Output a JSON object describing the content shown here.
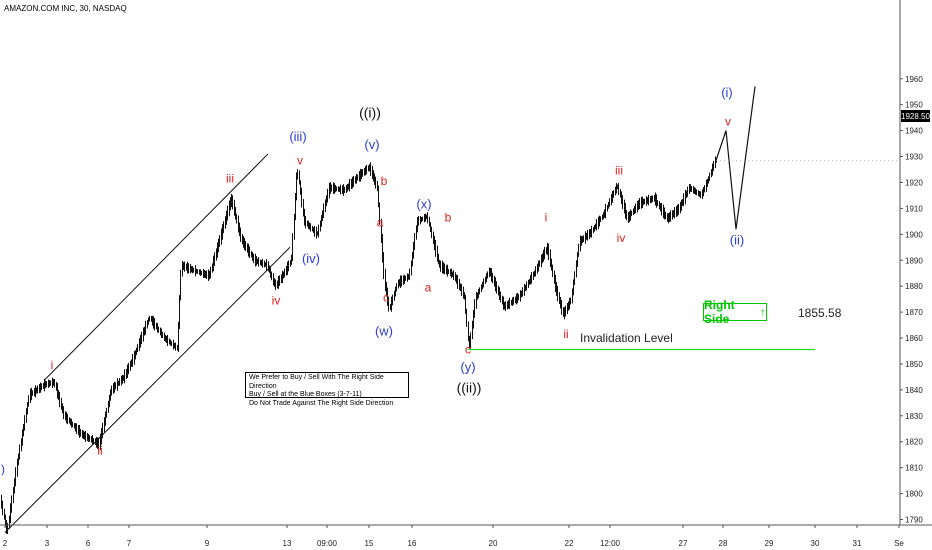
{
  "header": {
    "title": "AMAZON.COM INC, 30, NASDAQ"
  },
  "note": {
    "lines": [
      "We Prefer to Buy / Sell With The Right Side Direction",
      "Buy / Sell at the Blue Boxes (3-7-11)",
      "Do Not Trade Against The Right Side Direction"
    ]
  },
  "right_side_label": "Right Side",
  "right_side_arrow": "↑",
  "invalidation_label": "Invalidation Level",
  "invalidation_value": "1855.58",
  "last_price": "1928.50",
  "chart_data": {
    "type": "bar",
    "ylim": [
      1785,
      1965
    ],
    "y_ticks": [
      1790,
      1800,
      1810,
      1820,
      1830,
      1840,
      1850,
      1860,
      1870,
      1880,
      1890,
      1900,
      1910,
      1920,
      1930,
      1940,
      1950,
      1960
    ],
    "x_ticks": [
      "2",
      "3",
      "6",
      "7",
      "9",
      "13",
      "09:00",
      "15",
      "16",
      "20",
      "22",
      "12:00",
      "27",
      "28",
      "29",
      "30",
      "31",
      "Se"
    ],
    "invalidation_level": 1855.58,
    "last_price": 1928.5,
    "colors": {
      "blue": "#2b3cd6",
      "red": "#e0201e",
      "black": "#111111",
      "green": "#22dd22"
    },
    "waypoints": [
      [
        0,
        1800
      ],
      [
        8,
        1785
      ],
      [
        18,
        1812
      ],
      [
        30,
        1838
      ],
      [
        45,
        1842
      ],
      [
        55,
        1843
      ],
      [
        65,
        1830
      ],
      [
        82,
        1823
      ],
      [
        100,
        1819
      ],
      [
        112,
        1840
      ],
      [
        125,
        1845
      ],
      [
        135,
        1853
      ],
      [
        150,
        1868
      ],
      [
        165,
        1860
      ],
      [
        178,
        1856
      ],
      [
        182,
        1888
      ],
      [
        195,
        1886
      ],
      [
        210,
        1884
      ],
      [
        222,
        1900
      ],
      [
        232,
        1914
      ],
      [
        242,
        1898
      ],
      [
        255,
        1890
      ],
      [
        268,
        1888
      ],
      [
        276,
        1880
      ],
      [
        285,
        1885
      ],
      [
        292,
        1890
      ],
      [
        298,
        1926
      ],
      [
        305,
        1905
      ],
      [
        318,
        1900
      ],
      [
        330,
        1918
      ],
      [
        345,
        1917
      ],
      [
        358,
        1922
      ],
      [
        370,
        1926
      ],
      [
        378,
        1918
      ],
      [
        385,
        1882
      ],
      [
        390,
        1871
      ],
      [
        398,
        1881
      ],
      [
        410,
        1884
      ],
      [
        418,
        1905
      ],
      [
        428,
        1907
      ],
      [
        440,
        1888
      ],
      [
        455,
        1884
      ],
      [
        465,
        1876
      ],
      [
        470,
        1856
      ],
      [
        476,
        1875
      ],
      [
        490,
        1886
      ],
      [
        505,
        1872
      ],
      [
        520,
        1876
      ],
      [
        535,
        1885
      ],
      [
        548,
        1895
      ],
      [
        556,
        1880
      ],
      [
        564,
        1869
      ],
      [
        572,
        1875
      ],
      [
        580,
        1897
      ],
      [
        592,
        1901
      ],
      [
        605,
        1908
      ],
      [
        618,
        1919
      ],
      [
        628,
        1906
      ],
      [
        640,
        1912
      ],
      [
        655,
        1914
      ],
      [
        668,
        1906
      ],
      [
        680,
        1910
      ],
      [
        690,
        1918
      ],
      [
        702,
        1915
      ],
      [
        710,
        1922
      ],
      [
        716,
        1928.5
      ]
    ],
    "projection": [
      [
        716,
        1928.5
      ],
      [
        726,
        1940
      ],
      [
        736,
        1902
      ],
      [
        755,
        1957
      ]
    ],
    "channel": [
      {
        "from": [
          5,
          1785
        ],
        "to": [
          290,
          1895
        ]
      },
      {
        "from": [
          45,
          1844
        ],
        "to": [
          268,
          1931
        ]
      }
    ],
    "wave_labels": [
      {
        "text": ")",
        "at": [
          3,
          1808
        ],
        "color": "blue"
      },
      {
        "text": "i",
        "at": [
          52,
          1848
        ],
        "color": "red"
      },
      {
        "text": "ii",
        "at": [
          100,
          1815
        ],
        "color": "red"
      },
      {
        "text": "iii",
        "at": [
          230,
          1920
        ],
        "color": "red"
      },
      {
        "text": "iv",
        "at": [
          276,
          1873
        ],
        "color": "red"
      },
      {
        "text": "(iii)",
        "at": [
          298,
          1936
        ],
        "color": "blue"
      },
      {
        "text": "v",
        "at": [
          300,
          1927
        ],
        "color": "red"
      },
      {
        "text": "(iv)",
        "at": [
          311,
          1889
        ],
        "color": "blue"
      },
      {
        "text": "((i))",
        "at": [
          370,
          1945
        ],
        "color": "black"
      },
      {
        "text": "(v)",
        "at": [
          372,
          1933
        ],
        "color": "blue"
      },
      {
        "text": "b",
        "at": [
          384,
          1919
        ],
        "color": "red"
      },
      {
        "text": "a",
        "at": [
          380,
          1903
        ],
        "color": "red"
      },
      {
        "text": "c",
        "at": [
          386,
          1874
        ],
        "color": "red"
      },
      {
        "text": "(w)",
        "at": [
          384,
          1861
        ],
        "color": "blue"
      },
      {
        "text": "(x)",
        "at": [
          424,
          1910
        ],
        "color": "blue"
      },
      {
        "text": "b",
        "at": [
          448,
          1905
        ],
        "color": "red"
      },
      {
        "text": "a",
        "at": [
          428,
          1878
        ],
        "color": "red"
      },
      {
        "text": "c",
        "at": [
          468,
          1854
        ],
        "color": "red"
      },
      {
        "text": "(y)",
        "at": [
          468,
          1847
        ],
        "color": "blue"
      },
      {
        "text": "((ii))",
        "at": [
          469,
          1839
        ],
        "color": "black"
      },
      {
        "text": "i",
        "at": [
          546,
          1905
        ],
        "color": "red"
      },
      {
        "text": "ii",
        "at": [
          566,
          1860
        ],
        "color": "red"
      },
      {
        "text": "iii",
        "at": [
          619,
          1923
        ],
        "color": "red"
      },
      {
        "text": "iv",
        "at": [
          621,
          1897
        ],
        "color": "red"
      },
      {
        "text": "(i)",
        "at": [
          727,
          1953
        ],
        "color": "blue"
      },
      {
        "text": "v",
        "at": [
          728,
          1942
        ],
        "color": "red"
      },
      {
        "text": "(ii)",
        "at": [
          737,
          1896
        ],
        "color": "blue"
      }
    ]
  }
}
